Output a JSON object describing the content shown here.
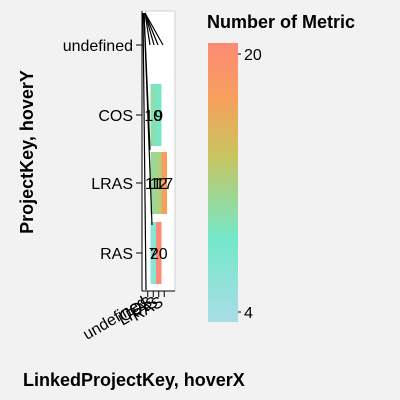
{
  "chart_data": {
    "type": "heatmap",
    "xlabel": "LinkedProjectKey, hoverX",
    "ylabel": "ProjectKey, hoverY",
    "x_categories": [
      "undefined",
      "COS",
      "LRAS",
      "RAS"
    ],
    "y_categories": [
      "undefined",
      "COS",
      "LRAS",
      "RAS"
    ],
    "cells": [
      {
        "x": "COS",
        "y": "COS",
        "value": 10
      },
      {
        "x": "LRAS",
        "y": "COS",
        "value": 9
      },
      {
        "x": "COS",
        "y": "LRAS",
        "value": 11
      },
      {
        "x": "LRAS",
        "y": "LRAS",
        "value": 12
      },
      {
        "x": "RAS",
        "y": "LRAS",
        "value": 17
      },
      {
        "x": "COS",
        "y": "RAS",
        "value": 7
      },
      {
        "x": "LRAS",
        "y": "RAS",
        "value": 20
      }
    ],
    "legend": {
      "title": "Number of Metric",
      "min": 4,
      "max": 20,
      "min_label": "4",
      "max_label": "20",
      "colors": [
        "#a8dde6",
        "#74e8c8",
        "#c9c45e",
        "#f7a05e",
        "#fd8a74"
      ]
    }
  }
}
